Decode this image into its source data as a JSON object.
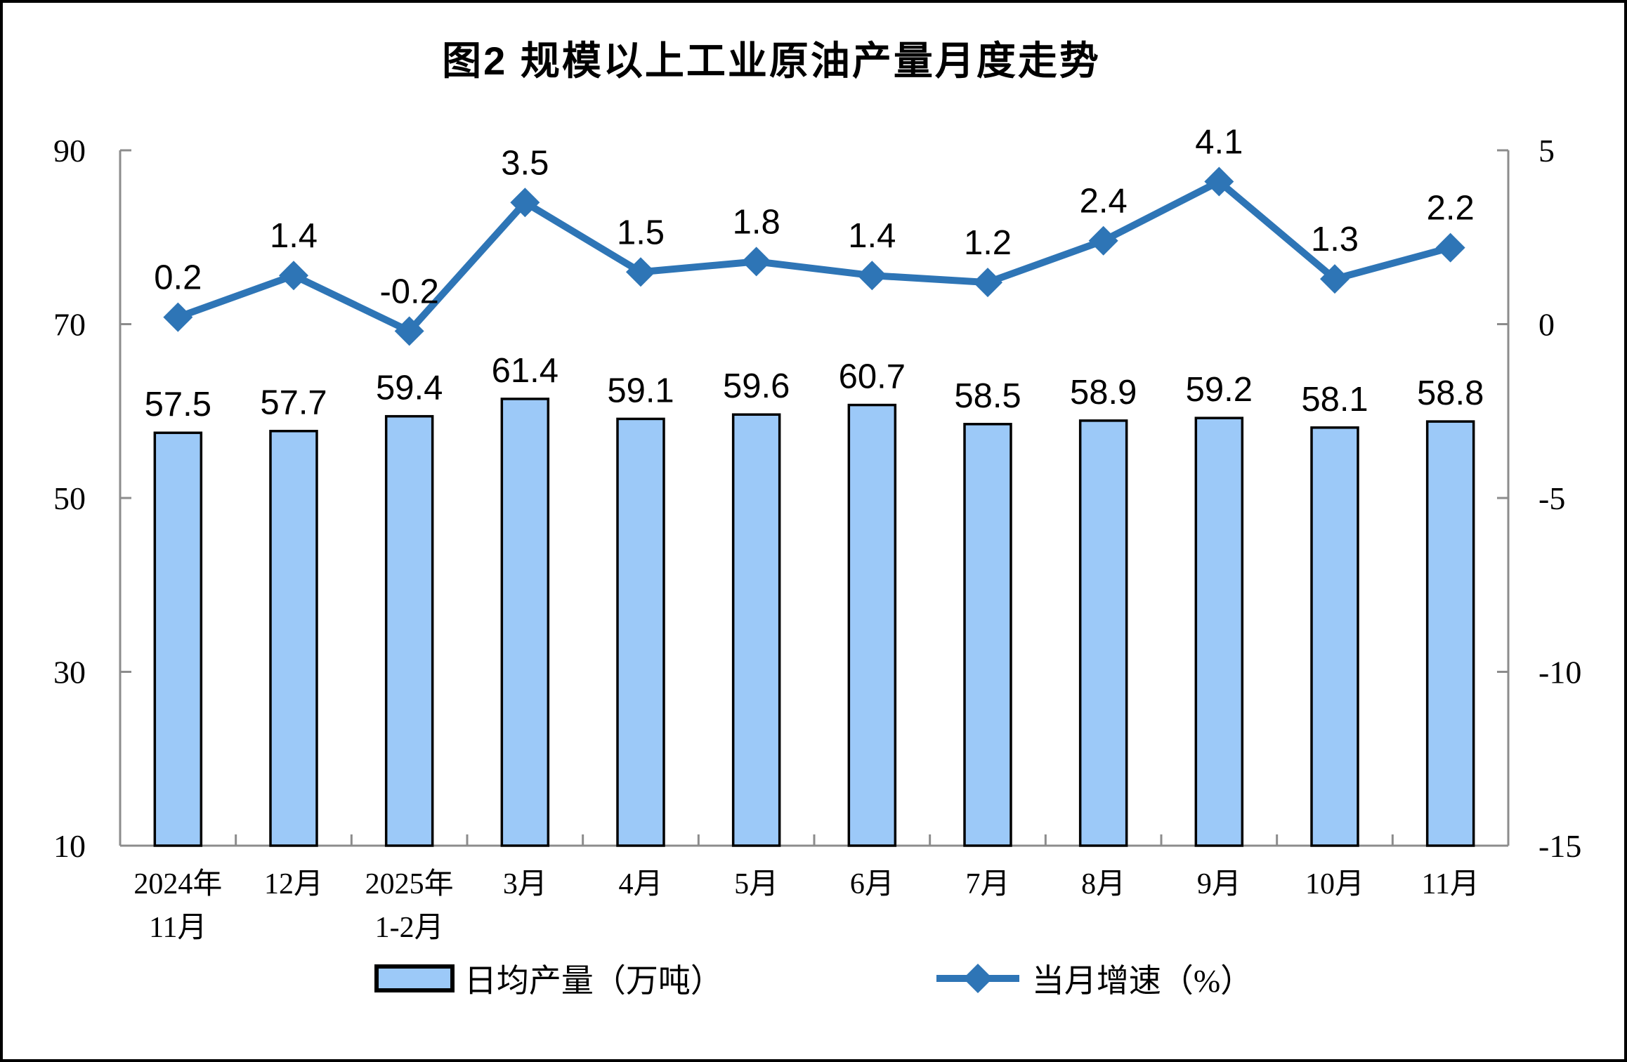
{
  "title": "图2 规模以上工业原油产量月度走势",
  "colors": {
    "bar_fill": "#9CC9F8",
    "bar_border": "#000000",
    "line": "#2E75B6",
    "axis": "#8C8C8C",
    "text": "#000000",
    "background": "#FFFFFF"
  },
  "chart_data": {
    "type": "bar",
    "subtype": "bar+line combo, dual axis",
    "title": "图2 规模以上工业原油产量月度走势",
    "categories": [
      "2024年\n11月",
      "12月",
      "2025年\n1-2月",
      "3月",
      "4月",
      "5月",
      "6月",
      "7月",
      "8月",
      "9月",
      "10月",
      "11月"
    ],
    "series": [
      {
        "name": "日均产量（万吨）",
        "type": "bar",
        "axis": "left",
        "values": [
          57.5,
          57.7,
          59.4,
          61.4,
          59.1,
          59.6,
          60.7,
          58.5,
          58.9,
          59.2,
          58.1,
          58.8
        ],
        "labels": [
          "57.5",
          "57.7",
          "59.4",
          "61.4",
          "59.1",
          "59.6",
          "60.7",
          "58.5",
          "58.9",
          "59.2",
          "58.1",
          "58.8"
        ]
      },
      {
        "name": "当月增速（%）",
        "type": "line",
        "axis": "right",
        "values": [
          0.2,
          1.4,
          -0.2,
          3.5,
          1.5,
          1.8,
          1.4,
          1.2,
          2.4,
          4.1,
          1.3,
          2.2
        ],
        "labels": [
          "0.2",
          "1.4",
          "-0.2",
          "3.5",
          "1.5",
          "1.8",
          "1.4",
          "1.2",
          "2.4",
          "4.1",
          "1.3",
          "2.2"
        ]
      }
    ],
    "left_axis": {
      "min": 10,
      "max": 90,
      "tick_values": [
        90,
        70,
        50,
        30,
        10
      ],
      "ticks": [
        "90",
        "70",
        "50",
        "30",
        "10"
      ]
    },
    "right_axis": {
      "min": -15,
      "max": 5,
      "tick_values": [
        5,
        0,
        -5,
        -10,
        -15
      ],
      "ticks": [
        "5",
        "0",
        "-5",
        "-10",
        "-15"
      ]
    },
    "grid": "off",
    "legend_position": "bottom",
    "legend": [
      {
        "label": "日均产量（万吨）",
        "swatch": "bar"
      },
      {
        "label": "当月增速（%）",
        "swatch": "line"
      }
    ]
  }
}
